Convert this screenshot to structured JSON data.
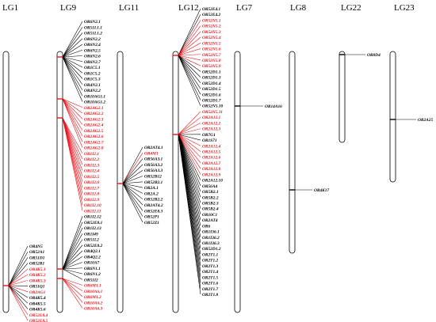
{
  "colors": {
    "black": "#000000",
    "red": "#e8141c",
    "chromosome": "#ffffff"
  },
  "chromosomes": [
    {
      "id": "LG1",
      "label": "LG1"
    },
    {
      "id": "LG9",
      "label": "LG9"
    },
    {
      "id": "LG11",
      "label": "LG11"
    },
    {
      "id": "LG12",
      "label": "LG12"
    },
    {
      "id": "LG7",
      "label": "LG7"
    },
    {
      "id": "LG8",
      "label": "LG8"
    },
    {
      "id": "LG22",
      "label": "LG22"
    },
    {
      "id": "LG23",
      "label": "LG23"
    }
  ],
  "gene_labels": {
    "LG1": [
      {
        "name": "OR4N5",
        "color": "black"
      },
      {
        "name": "OR52A1",
        "color": "black"
      },
      {
        "name": "OR51D1",
        "color": "black"
      },
      {
        "name": "OR52R1",
        "color": "black"
      },
      {
        "name": "OR4K5.1",
        "color": "red"
      },
      {
        "name": "OR4K5.2",
        "color": "red"
      },
      {
        "name": "OR4K5.3",
        "color": "red"
      },
      {
        "name": "OR51Q1",
        "color": "black"
      },
      {
        "name": "OR2AG1",
        "color": "red"
      },
      {
        "name": "OR4K5.4",
        "color": "black"
      },
      {
        "name": "OR4K5.5",
        "color": "black"
      },
      {
        "name": "OR4K5.6",
        "color": "black"
      },
      {
        "name": "OR52E8.4",
        "color": "red"
      },
      {
        "name": "OR52E8.5",
        "color": "red"
      }
    ],
    "LG9": [
      {
        "name": "OR6N2.1",
        "color": "black"
      },
      {
        "name": "OR51L1.1",
        "color": "black"
      },
      {
        "name": "OR51L1.2",
        "color": "black"
      },
      {
        "name": "OR6N2.2",
        "color": "black"
      },
      {
        "name": "OR6N2.4",
        "color": "black"
      },
      {
        "name": "OR6N2.5",
        "color": "black"
      },
      {
        "name": "OR6N2.6",
        "color": "black"
      },
      {
        "name": "OR6N2.7",
        "color": "black"
      },
      {
        "name": "OR1C5.1",
        "color": "black"
      },
      {
        "name": "OR1C5.2",
        "color": "black"
      },
      {
        "name": "OR1C5.3",
        "color": "black"
      },
      {
        "name": "OR4N2.1",
        "color": "black"
      },
      {
        "name": "OR4N2.2",
        "color": "black"
      },
      {
        "name": "OR10AG1.1",
        "color": "black"
      },
      {
        "name": "OR10AG1.2",
        "color": "black"
      },
      {
        "name": "OR2AG2.1",
        "color": "red"
      },
      {
        "name": "OR2AG2.2",
        "color": "red"
      },
      {
        "name": "OR2AG2.3",
        "color": "red"
      },
      {
        "name": "OR2AG2.4",
        "color": "red"
      },
      {
        "name": "OR2AG2.5",
        "color": "red"
      },
      {
        "name": "OR2AG2.6",
        "color": "red"
      },
      {
        "name": "OR2AG2.7",
        "color": "red"
      },
      {
        "name": "OR2AG2.8",
        "color": "red"
      },
      {
        "name": "OR1I2.1",
        "color": "red"
      },
      {
        "name": "OR1I2.2",
        "color": "red"
      },
      {
        "name": "OR1I2.3",
        "color": "red"
      },
      {
        "name": "OR1I2.4",
        "color": "red"
      },
      {
        "name": "OR1I2.5",
        "color": "red"
      },
      {
        "name": "OR1I2.6",
        "color": "red"
      },
      {
        "name": "OR1I2.7",
        "color": "red"
      },
      {
        "name": "OR1I2.8",
        "color": "red"
      },
      {
        "name": "OR1I2.9",
        "color": "red"
      },
      {
        "name": "OR1I2.10",
        "color": "red"
      },
      {
        "name": "OR1I2.11",
        "color": "red"
      },
      {
        "name": "OR1I2.12",
        "color": "black"
      },
      {
        "name": "OR52E8.1",
        "color": "black"
      },
      {
        "name": "OR1I2.13",
        "color": "black"
      },
      {
        "name": "OR1I49",
        "color": "black"
      },
      {
        "name": "OR51L2",
        "color": "black"
      },
      {
        "name": "OR52E8.2",
        "color": "black"
      },
      {
        "name": "OR4Q2.1",
        "color": "black"
      },
      {
        "name": "OR4Q2.2",
        "color": "black"
      },
      {
        "name": "OR10A7",
        "color": "black"
      },
      {
        "name": "OR6N1.1",
        "color": "black"
      },
      {
        "name": "OR6N1.2",
        "color": "black"
      },
      {
        "name": "OR51I2",
        "color": "black"
      },
      {
        "name": "OR6M1.1",
        "color": "red"
      },
      {
        "name": "OR10A6.1",
        "color": "red"
      },
      {
        "name": "OR6M1.2",
        "color": "red"
      },
      {
        "name": "OR10A6.2",
        "color": "red"
      },
      {
        "name": "OR10A6.3",
        "color": "red"
      }
    ],
    "LG11": [
      {
        "name": "OR2AT4.1",
        "color": "black"
      },
      {
        "name": "OR4M1",
        "color": "red"
      },
      {
        "name": "OR56A3.1",
        "color": "black"
      },
      {
        "name": "OR56A3.2",
        "color": "black"
      },
      {
        "name": "OR56A3.3",
        "color": "black"
      },
      {
        "name": "OR52B12",
        "color": "black"
      },
      {
        "name": "OR52B2.1",
        "color": "black"
      },
      {
        "name": "OR2A.1",
        "color": "black"
      },
      {
        "name": "OR2A.2",
        "color": "black"
      },
      {
        "name": "OR52B2.2",
        "color": "black"
      },
      {
        "name": "OR2AT4.2",
        "color": "black"
      },
      {
        "name": "OR52E8.3",
        "color": "black"
      },
      {
        "name": "OR52P1",
        "color": "black"
      },
      {
        "name": "OR52Z1",
        "color": "black"
      }
    ],
    "LG12": [
      {
        "name": "OR52E4.1",
        "color": "black"
      },
      {
        "name": "OR52E4.2",
        "color": "black"
      },
      {
        "name": "OR52N5.1",
        "color": "red"
      },
      {
        "name": "OR52N5.2",
        "color": "red"
      },
      {
        "name": "OR52N5.3",
        "color": "red"
      },
      {
        "name": "OR52N5.4",
        "color": "red"
      },
      {
        "name": "OR52N5.5",
        "color": "red"
      },
      {
        "name": "OR52N5.6",
        "color": "red"
      },
      {
        "name": "OR52N5.7",
        "color": "red"
      },
      {
        "name": "OR52N5.8",
        "color": "red"
      },
      {
        "name": "OR52N5.9",
        "color": "red"
      },
      {
        "name": "OR52D1.1",
        "color": "black"
      },
      {
        "name": "OR52D1.3",
        "color": "black"
      },
      {
        "name": "OR52D1.4",
        "color": "black"
      },
      {
        "name": "OR52D1.5",
        "color": "black"
      },
      {
        "name": "OR52D1.6",
        "color": "black"
      },
      {
        "name": "OR52D1.7",
        "color": "black"
      },
      {
        "name": "OR52N5.10",
        "color": "black"
      },
      {
        "name": "OR52N5.11",
        "color": "red"
      },
      {
        "name": "OR2A12.1",
        "color": "red"
      },
      {
        "name": "OR2A12.2",
        "color": "red"
      },
      {
        "name": "OR2A12.3",
        "color": "red"
      },
      {
        "name": "OR7G1",
        "color": "black"
      },
      {
        "name": "OR1S71",
        "color": "black"
      },
      {
        "name": "OR2A12.4",
        "color": "red"
      },
      {
        "name": "OR2A12.5",
        "color": "red"
      },
      {
        "name": "OR2A12.6",
        "color": "red"
      },
      {
        "name": "OR2A12.7",
        "color": "red"
      },
      {
        "name": "OR2A12.8",
        "color": "red"
      },
      {
        "name": "OR2A12.9",
        "color": "red"
      },
      {
        "name": "OR2A12.10",
        "color": "black"
      },
      {
        "name": "OR56A4",
        "color": "black"
      },
      {
        "name": "OR5B2.1",
        "color": "black"
      },
      {
        "name": "OR5B2.2",
        "color": "black"
      },
      {
        "name": "OR5B2.3",
        "color": "black"
      },
      {
        "name": "OR5B2.4",
        "color": "black"
      },
      {
        "name": "OR10C1",
        "color": "black"
      },
      {
        "name": "OR2AT4",
        "color": "black"
      },
      {
        "name": "OR6",
        "color": "black"
      },
      {
        "name": "OR1I36.1",
        "color": "black"
      },
      {
        "name": "OR1I36.2",
        "color": "black"
      },
      {
        "name": "OR1I36.3",
        "color": "black"
      },
      {
        "name": "OR52D1.2",
        "color": "black"
      },
      {
        "name": "OR2T1.1",
        "color": "black"
      },
      {
        "name": "OR2T1.2",
        "color": "black"
      },
      {
        "name": "OR2T1.3",
        "color": "black"
      },
      {
        "name": "OR2T1.4",
        "color": "black"
      },
      {
        "name": "OR2T1.5",
        "color": "black"
      },
      {
        "name": "OR2T1.6",
        "color": "black"
      },
      {
        "name": "OR2T1.7",
        "color": "black"
      },
      {
        "name": "OR2T1.8",
        "color": "black"
      }
    ],
    "LG7": [
      {
        "name": "OR14A16",
        "color": "black"
      }
    ],
    "LG8": [
      {
        "name": "OR4K17",
        "color": "black"
      }
    ],
    "LG22": [
      {
        "name": "OR8D4",
        "color": "black"
      }
    ],
    "LG23": [
      {
        "name": "OR2A25",
        "color": "black"
      }
    ]
  }
}
